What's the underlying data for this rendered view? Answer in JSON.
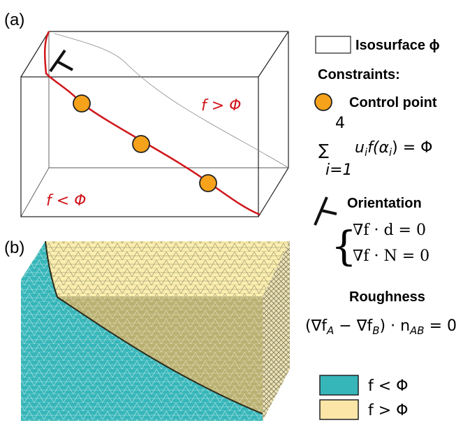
{
  "panel_a": {
    "label": "(a)",
    "region_above": "f > Φ",
    "region_below": "f < Φ"
  },
  "panel_b": {
    "label": "(b)"
  },
  "legend": {
    "isosurface": "Isosurface ϕ",
    "constraints_title": "Constraints:",
    "control_point": "Control point",
    "sum_formula": {
      "operator": "∑",
      "upper": "4",
      "lower": "i=1",
      "parts": [
        "u",
        "i",
        "f(",
        "α",
        "i",
        ") = Φ"
      ]
    },
    "orientation": "Orientation",
    "orientation_equations": [
      "∇f · d = 0",
      "∇f · N = 0"
    ],
    "roughness": "Roughness",
    "roughness_formula": [
      "(∇f",
      "A",
      " − ∇f",
      "B",
      ") · n",
      "AB",
      " = 0"
    ],
    "below": "f < Φ",
    "above": "f > Φ"
  }
}
